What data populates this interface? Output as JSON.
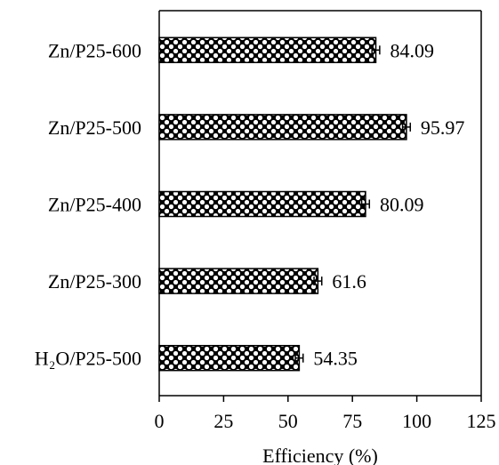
{
  "chart_data": {
    "type": "bar",
    "orientation": "horizontal",
    "categories": [
      "Zn/P25-600",
      "Zn/P25-500",
      "Zn/P25-400",
      "Zn/P25-300",
      "H₂O/P25-500"
    ],
    "values": [
      84.09,
      95.97,
      80.09,
      61.6,
      54.35
    ],
    "value_labels": [
      "84.09",
      "95.97",
      "80.09",
      "61.6",
      "54.35"
    ],
    "error": [
      1.5,
      1.5,
      1.5,
      1.5,
      1.5
    ],
    "xlabel": "Efficiency (%)",
    "xlim": [
      0,
      125
    ],
    "xticks": [
      0,
      25,
      50,
      75,
      100,
      125
    ],
    "xtick_labels": [
      "0",
      "25",
      "50",
      "75",
      "100",
      "125"
    ],
    "grid": false,
    "bar_fill": "checkered-pattern",
    "colors": {
      "bar_outline": "#000000",
      "pattern_dark": "#000000",
      "pattern_light": "#ffffff"
    }
  }
}
